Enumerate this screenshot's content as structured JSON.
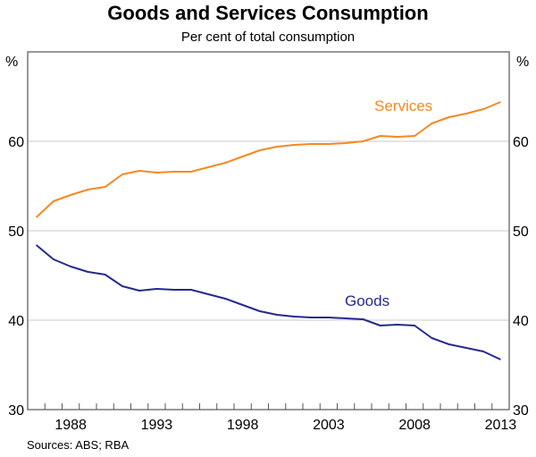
{
  "chart_data": {
    "type": "line",
    "title": "Goods and Services Consumption",
    "subtitle": "Per cent of total consumption",
    "ylabel_left": "%",
    "ylabel_right": "%",
    "ylim": [
      30,
      70
    ],
    "yticks": [
      30,
      40,
      50,
      60
    ],
    "xlim": [
      1986,
      2013
    ],
    "xtick_labels": [
      "1988",
      "1993",
      "1998",
      "2003",
      "2008",
      "2013"
    ],
    "grid": true,
    "x": [
      1986,
      1987,
      1988,
      1989,
      1990,
      1991,
      1992,
      1993,
      1994,
      1995,
      1996,
      1997,
      1998,
      1999,
      2000,
      2001,
      2002,
      2003,
      2004,
      2005,
      2006,
      2007,
      2008,
      2009,
      2010,
      2011,
      2012,
      2013
    ],
    "series": [
      {
        "name": "Services",
        "color": "#f7881f",
        "values": [
          51.5,
          53.3,
          54.0,
          54.6,
          54.9,
          56.3,
          56.7,
          56.5,
          56.6,
          56.6,
          57.1,
          57.6,
          58.3,
          59.0,
          59.4,
          59.6,
          59.7,
          59.7,
          59.8,
          60.0,
          60.6,
          60.5,
          60.6,
          62.0,
          62.7,
          63.1,
          63.6,
          64.4
        ]
      },
      {
        "name": "Goods",
        "color": "#242a8c",
        "values": [
          48.4,
          46.8,
          46.0,
          45.4,
          45.1,
          43.8,
          43.3,
          43.5,
          43.4,
          43.4,
          42.9,
          42.4,
          41.7,
          41.0,
          40.6,
          40.4,
          40.3,
          40.3,
          40.2,
          40.1,
          39.4,
          39.5,
          39.4,
          38.0,
          37.3,
          36.9,
          36.5,
          35.6
        ]
      }
    ],
    "source": "Sources: ABS; RBA"
  }
}
